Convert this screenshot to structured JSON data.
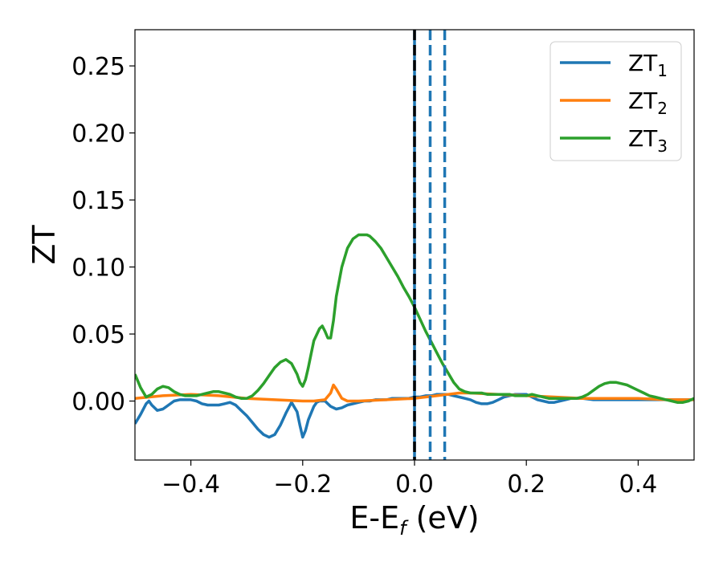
{
  "chart_data": {
    "type": "line",
    "xlabel_main": "E-E",
    "xlabel_sub": "f",
    "xlabel_unit": " (eV)",
    "ylabel": "ZT",
    "xlim": [
      -0.5,
      0.5
    ],
    "ylim": [
      -0.044,
      0.277
    ],
    "x_ticks": [
      -0.4,
      -0.2,
      0.0,
      0.2,
      0.4
    ],
    "x_tick_labels": [
      "−0.4",
      "−0.2",
      "0.0",
      "0.2",
      "0.4"
    ],
    "y_ticks": [
      0.0,
      0.05,
      0.1,
      0.15,
      0.2,
      0.25
    ],
    "y_tick_labels": [
      "0.00",
      "0.05",
      "0.10",
      "0.15",
      "0.20",
      "0.25"
    ],
    "grid": false,
    "legend_position": "top-right",
    "vlines": [
      {
        "x": 0.0,
        "style": "solid",
        "color": "#1f77b4"
      },
      {
        "x": 0.0,
        "style": "dashed",
        "color": "#000000"
      },
      {
        "x": 0.028,
        "style": "dashed",
        "color": "#1f77b4"
      },
      {
        "x": 0.054,
        "style": "dashed",
        "color": "#1f77b4"
      }
    ],
    "series": [
      {
        "name": "ZT",
        "sub": "1",
        "color": "#1f77b4",
        "x": [
          -0.5,
          -0.49,
          -0.48,
          -0.475,
          -0.47,
          -0.46,
          -0.45,
          -0.44,
          -0.43,
          -0.42,
          -0.41,
          -0.4,
          -0.39,
          -0.38,
          -0.37,
          -0.36,
          -0.35,
          -0.34,
          -0.33,
          -0.32,
          -0.31,
          -0.3,
          -0.29,
          -0.28,
          -0.27,
          -0.26,
          -0.25,
          -0.24,
          -0.23,
          -0.22,
          -0.21,
          -0.205,
          -0.2,
          -0.195,
          -0.19,
          -0.18,
          -0.175,
          -0.17,
          -0.16,
          -0.155,
          -0.15,
          -0.14,
          -0.13,
          -0.12,
          -0.11,
          -0.1,
          -0.09,
          -0.08,
          -0.07,
          -0.06,
          -0.05,
          -0.04,
          -0.03,
          -0.02,
          -0.01,
          0.0,
          0.01,
          0.02,
          0.03,
          0.04,
          0.05,
          0.06,
          0.07,
          0.08,
          0.09,
          0.1,
          0.11,
          0.12,
          0.13,
          0.14,
          0.15,
          0.16,
          0.17,
          0.18,
          0.19,
          0.2,
          0.21,
          0.22,
          0.23,
          0.24,
          0.25,
          0.26,
          0.27,
          0.28,
          0.29,
          0.3,
          0.32,
          0.34,
          0.36,
          0.38,
          0.4,
          0.42,
          0.44,
          0.46,
          0.48,
          0.5
        ],
        "y": [
          -0.017,
          -0.01,
          -0.002,
          0.0,
          -0.003,
          -0.007,
          -0.006,
          -0.003,
          0.0,
          0.001,
          0.001,
          0.001,
          0.0,
          -0.002,
          -0.003,
          -0.003,
          -0.003,
          -0.002,
          -0.001,
          -0.003,
          -0.007,
          -0.011,
          -0.016,
          -0.021,
          -0.025,
          -0.027,
          -0.025,
          -0.018,
          -0.009,
          -0.001,
          -0.008,
          -0.018,
          -0.027,
          -0.022,
          -0.014,
          -0.004,
          -0.001,
          0.0,
          0.0,
          -0.002,
          -0.004,
          -0.006,
          -0.005,
          -0.003,
          -0.002,
          -0.001,
          0.0,
          0.0,
          0.001,
          0.001,
          0.001,
          0.002,
          0.002,
          0.002,
          0.002,
          0.003,
          0.003,
          0.004,
          0.004,
          0.005,
          0.005,
          0.005,
          0.004,
          0.003,
          0.002,
          0.001,
          -0.001,
          -0.002,
          -0.002,
          -0.001,
          0.001,
          0.003,
          0.004,
          0.005,
          0.005,
          0.005,
          0.003,
          0.001,
          0.0,
          -0.001,
          -0.001,
          0.0,
          0.001,
          0.002,
          0.002,
          0.002,
          0.001,
          0.001,
          0.001,
          0.001,
          0.001,
          0.001,
          0.001,
          0.001,
          0.001,
          0.001
        ]
      },
      {
        "name": "ZT",
        "sub": "2",
        "color": "#ff7f0e",
        "x": [
          -0.5,
          -0.45,
          -0.4,
          -0.35,
          -0.3,
          -0.25,
          -0.2,
          -0.18,
          -0.16,
          -0.15,
          -0.145,
          -0.14,
          -0.13,
          -0.12,
          -0.1,
          -0.05,
          0.0,
          0.02,
          0.04,
          0.06,
          0.08,
          0.1,
          0.15,
          0.2,
          0.25,
          0.3,
          0.35,
          0.4,
          0.45,
          0.5
        ],
        "y": [
          0.002,
          0.004,
          0.005,
          0.004,
          0.002,
          0.001,
          0.0,
          0.0,
          0.001,
          0.006,
          0.012,
          0.009,
          0.002,
          0.0,
          0.0,
          0.001,
          0.002,
          0.003,
          0.004,
          0.005,
          0.006,
          0.006,
          0.005,
          0.004,
          0.003,
          0.002,
          0.002,
          0.002,
          0.001,
          0.001
        ]
      },
      {
        "name": "ZT",
        "sub": "3",
        "color": "#2ca02c",
        "x": [
          -0.5,
          -0.49,
          -0.48,
          -0.47,
          -0.46,
          -0.45,
          -0.44,
          -0.43,
          -0.42,
          -0.41,
          -0.4,
          -0.39,
          -0.38,
          -0.37,
          -0.36,
          -0.35,
          -0.34,
          -0.33,
          -0.32,
          -0.31,
          -0.3,
          -0.29,
          -0.28,
          -0.27,
          -0.26,
          -0.25,
          -0.24,
          -0.23,
          -0.22,
          -0.21,
          -0.205,
          -0.2,
          -0.195,
          -0.19,
          -0.185,
          -0.18,
          -0.17,
          -0.165,
          -0.16,
          -0.155,
          -0.15,
          -0.145,
          -0.14,
          -0.13,
          -0.12,
          -0.11,
          -0.1,
          -0.09,
          -0.085,
          -0.08,
          -0.07,
          -0.06,
          -0.05,
          -0.04,
          -0.03,
          -0.02,
          -0.01,
          0.0,
          0.01,
          0.02,
          0.03,
          0.04,
          0.05,
          0.06,
          0.07,
          0.08,
          0.09,
          0.1,
          0.11,
          0.12,
          0.13,
          0.14,
          0.15,
          0.16,
          0.17,
          0.18,
          0.19,
          0.2,
          0.21,
          0.22,
          0.23,
          0.24,
          0.25,
          0.26,
          0.27,
          0.28,
          0.29,
          0.3,
          0.31,
          0.32,
          0.33,
          0.34,
          0.35,
          0.36,
          0.37,
          0.38,
          0.39,
          0.4,
          0.41,
          0.42,
          0.43,
          0.44,
          0.45,
          0.46,
          0.47,
          0.48,
          0.49,
          0.5
        ],
        "y": [
          0.02,
          0.01,
          0.003,
          0.005,
          0.009,
          0.011,
          0.01,
          0.007,
          0.005,
          0.004,
          0.004,
          0.004,
          0.005,
          0.006,
          0.007,
          0.007,
          0.006,
          0.005,
          0.003,
          0.002,
          0.002,
          0.004,
          0.008,
          0.013,
          0.019,
          0.025,
          0.029,
          0.031,
          0.028,
          0.02,
          0.014,
          0.011,
          0.016,
          0.025,
          0.035,
          0.045,
          0.054,
          0.056,
          0.052,
          0.047,
          0.047,
          0.06,
          0.078,
          0.1,
          0.114,
          0.121,
          0.124,
          0.124,
          0.124,
          0.123,
          0.119,
          0.114,
          0.107,
          0.1,
          0.093,
          0.085,
          0.078,
          0.07,
          0.061,
          0.052,
          0.044,
          0.036,
          0.028,
          0.021,
          0.014,
          0.009,
          0.007,
          0.006,
          0.006,
          0.006,
          0.005,
          0.005,
          0.005,
          0.005,
          0.005,
          0.004,
          0.004,
          0.004,
          0.005,
          0.004,
          0.003,
          0.002,
          0.002,
          0.002,
          0.002,
          0.002,
          0.002,
          0.003,
          0.005,
          0.008,
          0.011,
          0.013,
          0.014,
          0.014,
          0.013,
          0.012,
          0.01,
          0.008,
          0.006,
          0.004,
          0.003,
          0.002,
          0.001,
          0.0,
          -0.001,
          -0.001,
          0.0,
          0.002
        ]
      }
    ]
  }
}
